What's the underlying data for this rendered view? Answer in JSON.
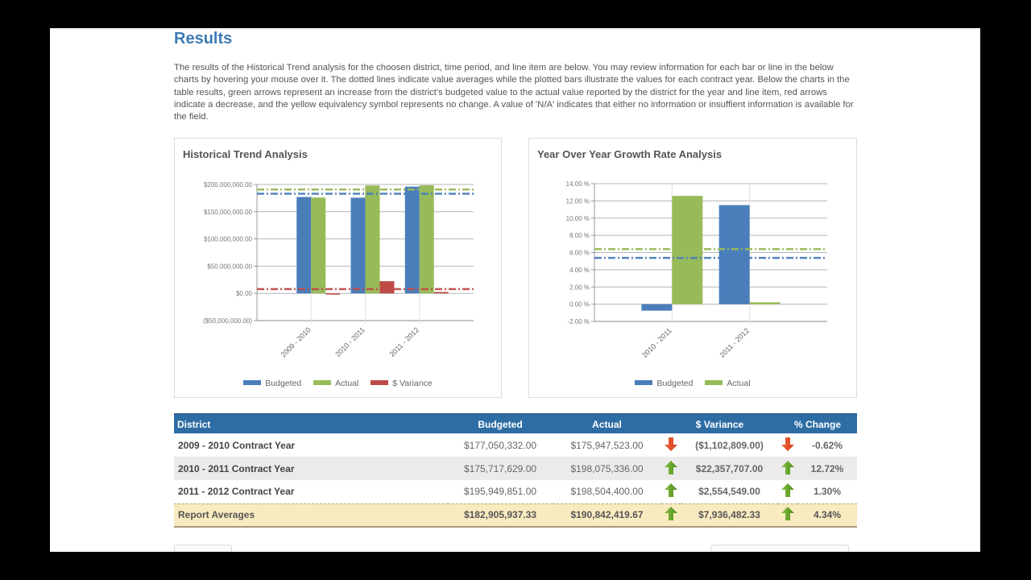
{
  "page": {
    "title": "Results",
    "intro": "The results of the Historical Trend analysis for the choosen district, time period, and line item are below. You may review information for each bar or line in the below charts by hovering your mouse over it. The dotted lines indicate value averages while the plotted bars illustrate the values for each contract year. Below the charts in the table results, green arrows represent an increase from the district's budgeted value to the actual value reported by the district for the year and line item, red arrows indicate a decrease, and the yellow equivalency symbol represents no change. A value of 'N/A' indicates that either no information or insuffient information is available for the field."
  },
  "colors": {
    "budgeted": "#4a7ebb",
    "actual": "#98bb59",
    "variance": "#be4b48",
    "header": "#2e6da4",
    "title": "#3d7ab4",
    "increase": "#5a8c1e",
    "decrease": "#c43b1e"
  },
  "chart_data": [
    {
      "type": "bar",
      "title": "Historical Trend Analysis",
      "categories": [
        "2009 - 2010",
        "2010 - 2011",
        "2011 - 2012"
      ],
      "series": [
        {
          "name": "Budgeted",
          "values": [
            177050332,
            175717629,
            195949851
          ],
          "average": 182905937.33
        },
        {
          "name": "Actual",
          "values": [
            175947523,
            198075336,
            198504400
          ],
          "average": 190842419.67
        },
        {
          "name": "$ Variance",
          "values": [
            -1102809,
            22357707,
            2554549
          ],
          "average": 7936482.33
        }
      ],
      "yticks": [
        "$200,000,000.00",
        "$150,000,000.00",
        "$100,000,000.00",
        "$50,000,000.00",
        "$0.00",
        "($50,000,000.00)"
      ],
      "ylim": [
        -50000000,
        200000000
      ],
      "xlabel": "",
      "ylabel": "",
      "grid": true,
      "legend_position": "bottom",
      "annotations": "dash-dot lines show series averages"
    },
    {
      "type": "bar",
      "title": "Year Over Year Growth Rate Analysis",
      "categories": [
        "2010 - 2011",
        "2011 - 2012"
      ],
      "series": [
        {
          "name": "Budgeted",
          "values": [
            -0.75,
            11.51
          ],
          "average": 5.38
        },
        {
          "name": "Actual",
          "values": [
            12.58,
            0.22
          ],
          "average": 6.4
        }
      ],
      "yticks": [
        "14.00 %",
        "12.00 %",
        "10.00 %",
        "8.00 %",
        "6.00 %",
        "4.00 %",
        "2.00 %",
        "0.00 %",
        "-2.00 %"
      ],
      "ylim": [
        -2,
        14
      ],
      "xlabel": "",
      "ylabel": "",
      "grid": true,
      "legend_position": "bottom",
      "annotations": "dash-dot lines show series averages"
    }
  ],
  "legend1": [
    "Budgeted",
    "Actual",
    "$ Variance"
  ],
  "legend2": [
    "Budgeted",
    "Actual"
  ],
  "table": {
    "headers": [
      "District",
      "Budgeted",
      "Actual",
      "$ Variance",
      "% Change"
    ],
    "rows": [
      {
        "district": "2009 - 2010 Contract Year",
        "budgeted": "$177,050,332.00",
        "actual": "$175,947,523.00",
        "variance": "($1,102,809.00)",
        "change": "-0.62%",
        "direction": "down"
      },
      {
        "district": "2010 - 2011 Contract Year",
        "budgeted": "$175,717,629.00",
        "actual": "$198,075,336.00",
        "variance": "$22,357,707.00",
        "change": "12.72%",
        "direction": "up"
      },
      {
        "district": "2011 - 2012 Contract Year",
        "budgeted": "$195,949,851.00",
        "actual": "$198,504,400.00",
        "variance": "$2,554,549.00",
        "change": "1.30%",
        "direction": "up"
      }
    ],
    "averages": {
      "district": "Report Averages",
      "budgeted": "$182,905,937.33",
      "actual": "$190,842,419.67",
      "variance": "$7,936,482.33",
      "change": "4.34%",
      "direction": "up"
    }
  }
}
